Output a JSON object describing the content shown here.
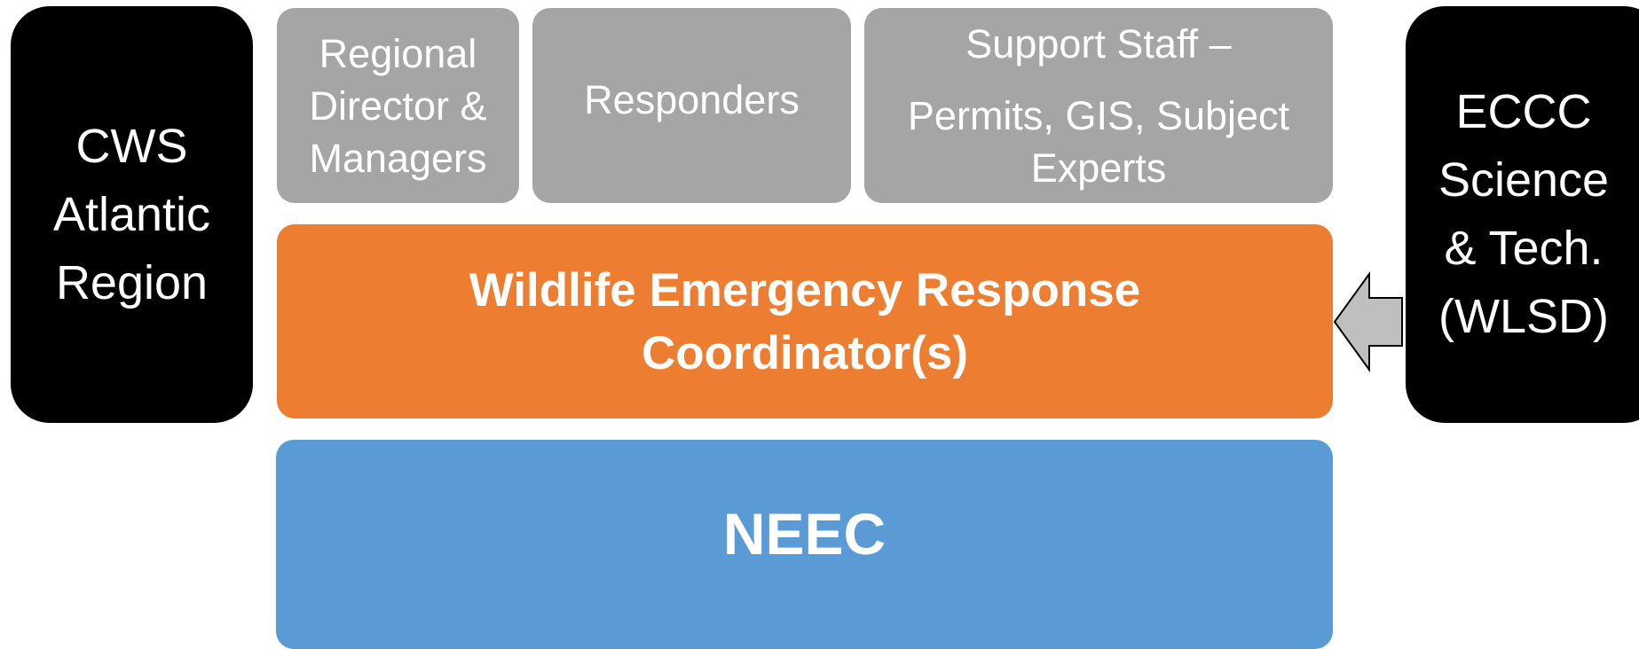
{
  "left_box": {
    "lines": [
      "CWS",
      "Atlantic",
      "Region"
    ]
  },
  "top_boxes": [
    {
      "lines": [
        "Regional",
        "Director &",
        "Managers"
      ]
    },
    {
      "lines": [
        "Responders"
      ]
    },
    {
      "lines": [
        "Support Staff –",
        "Permits, GIS, Subject",
        "Experts"
      ]
    }
  ],
  "coordinator": {
    "lines": [
      "Wildlife Emergency Response",
      "Coordinator(s)"
    ]
  },
  "base": {
    "label": "NEEC"
  },
  "right_box": {
    "lines": [
      "ECCC",
      "Science",
      "& Tech.",
      "(WLSD)"
    ]
  }
}
